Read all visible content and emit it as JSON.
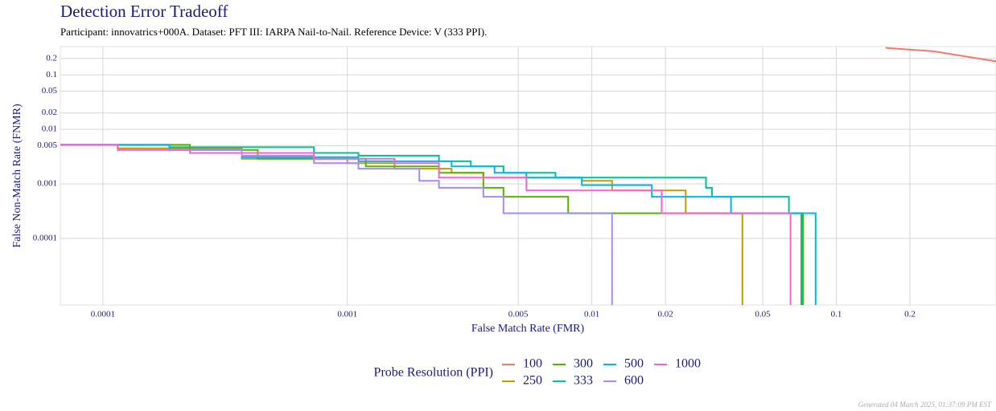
{
  "chart_data": {
    "type": "line",
    "title": "Detection Error Tradeoff",
    "subtitle": "Participant: innovatrics+000A. Dataset: PFT III: IARPA Nail-to-Nail. Reference Device: V (333 PPI).",
    "x_label": "False Match Rate (FMR)",
    "y_label": "False Non-Match Rate (FNMR)",
    "legend_title": "Probe Resolution (PPI)",
    "footer": "Generated 04 March 2025, 01:37:09 PM EST",
    "x_log": true,
    "y_log": true,
    "grid": true,
    "legend_position": "bottom",
    "xlim": [
      6.7e-05,
      0.45
    ],
    "ylim": [
      6e-06,
      0.33
    ],
    "xticks": [
      0.0001,
      0.001,
      0.005,
      0.01,
      0.02,
      0.05,
      0.1,
      0.2
    ],
    "yticks": [
      0.2,
      0.1,
      0.05,
      0.02,
      0.01,
      0.005,
      0.001,
      0.0001
    ],
    "series": [
      {
        "name": "100",
        "color": "#f8766d",
        "x": [
          0.159,
          0.25,
          0.45
        ],
        "values": [
          0.313,
          0.27,
          0.177
        ]
      },
      {
        "name": "250",
        "color": "#c49a00",
        "x": [
          6.7e-05,
          0.000115,
          0.000115,
          0.00037,
          0.00037,
          0.001,
          0.001,
          0.00156,
          0.00156,
          0.00267,
          0.00267,
          0.0036,
          0.0036,
          0.0091,
          0.0091,
          0.0121,
          0.0121,
          0.0242,
          0.0242,
          0.0413,
          0.0413
        ],
        "values": [
          0.0052,
          0.0052,
          0.0045,
          0.0045,
          0.0029,
          0.0029,
          0.0024,
          0.0024,
          0.0019,
          0.0019,
          0.0016,
          0.0016,
          0.0013,
          0.0013,
          0.00114,
          0.00114,
          0.00076,
          0.00076,
          0.00029,
          0.00029,
          6e-06
        ]
      },
      {
        "name": "300",
        "color": "#53b400",
        "x": [
          6.7e-05,
          0.000227,
          0.000227,
          0.00043,
          0.00043,
          0.00119,
          0.00119,
          0.00237,
          0.00237,
          0.0036,
          0.0036,
          0.00435,
          0.00435,
          0.008,
          0.008,
          0.073,
          0.073
        ],
        "values": [
          0.0052,
          0.0052,
          0.0042,
          0.0042,
          0.0029,
          0.0029,
          0.0021,
          0.0021,
          0.0016,
          0.0016,
          0.00085,
          0.00085,
          0.00058,
          0.00058,
          0.00029,
          0.00029,
          6e-06
        ]
      },
      {
        "name": "333",
        "color": "#00c094",
        "x": [
          6.7e-05,
          0.000187,
          0.000187,
          0.00073,
          0.00073,
          0.00111,
          0.00111,
          0.00237,
          0.00237,
          0.0032,
          0.0032,
          0.00435,
          0.00435,
          0.0071,
          0.0071,
          0.0293,
          0.0293,
          0.031,
          0.031,
          0.064,
          0.064,
          0.0719,
          0.0719
        ],
        "values": [
          0.0052,
          0.0052,
          0.0047,
          0.0047,
          0.0037,
          0.0037,
          0.0033,
          0.0033,
          0.0026,
          0.0026,
          0.0021,
          0.0021,
          0.0016,
          0.0016,
          0.0013,
          0.0013,
          0.00085,
          0.00085,
          0.00058,
          0.00058,
          0.00029,
          0.00029,
          6e-06
        ]
      },
      {
        "name": "500",
        "color": "#00b6eb",
        "x": [
          6.7e-05,
          0.000187,
          0.000187,
          0.00037,
          0.00037,
          0.00111,
          0.00111,
          0.00267,
          0.00267,
          0.004,
          0.004,
          0.0054,
          0.0054,
          0.0091,
          0.0091,
          0.0176,
          0.0176,
          0.0371,
          0.0371,
          0.0823,
          0.0823
        ],
        "values": [
          0.0052,
          0.0052,
          0.0042,
          0.0042,
          0.0031,
          0.0031,
          0.0026,
          0.0026,
          0.0021,
          0.0021,
          0.0016,
          0.0016,
          0.0013,
          0.0013,
          0.00095,
          0.00095,
          0.00058,
          0.00058,
          0.00029,
          0.00029,
          6e-06
        ]
      },
      {
        "name": "600",
        "color": "#a58aff",
        "x": [
          6.7e-05,
          0.000115,
          0.000115,
          0.00037,
          0.00037,
          0.00073,
          0.00073,
          0.00111,
          0.00111,
          0.00197,
          0.00197,
          0.00237,
          0.00237,
          0.0036,
          0.0036,
          0.00435,
          0.00435,
          0.0121,
          0.0121
        ],
        "values": [
          0.0052,
          0.0052,
          0.0042,
          0.0042,
          0.0033,
          0.0033,
          0.0024,
          0.0024,
          0.0019,
          0.0019,
          0.00114,
          0.00114,
          0.00085,
          0.00085,
          0.00058,
          0.00058,
          0.00029,
          0.00029,
          6e-06
        ]
      },
      {
        "name": "1000",
        "color": "#fb61d7",
        "x": [
          6.7e-05,
          0.000115,
          0.000115,
          0.000227,
          0.000227,
          0.00073,
          0.00073,
          0.00156,
          0.00156,
          0.00237,
          0.00237,
          0.0054,
          0.0054,
          0.0193,
          0.0193,
          0.065,
          0.065
        ],
        "values": [
          0.0052,
          0.0052,
          0.0042,
          0.0042,
          0.0037,
          0.0037,
          0.0029,
          0.0029,
          0.0024,
          0.0024,
          0.0013,
          0.0013,
          0.00076,
          0.00076,
          0.00029,
          0.00029,
          6e-06
        ]
      }
    ]
  }
}
